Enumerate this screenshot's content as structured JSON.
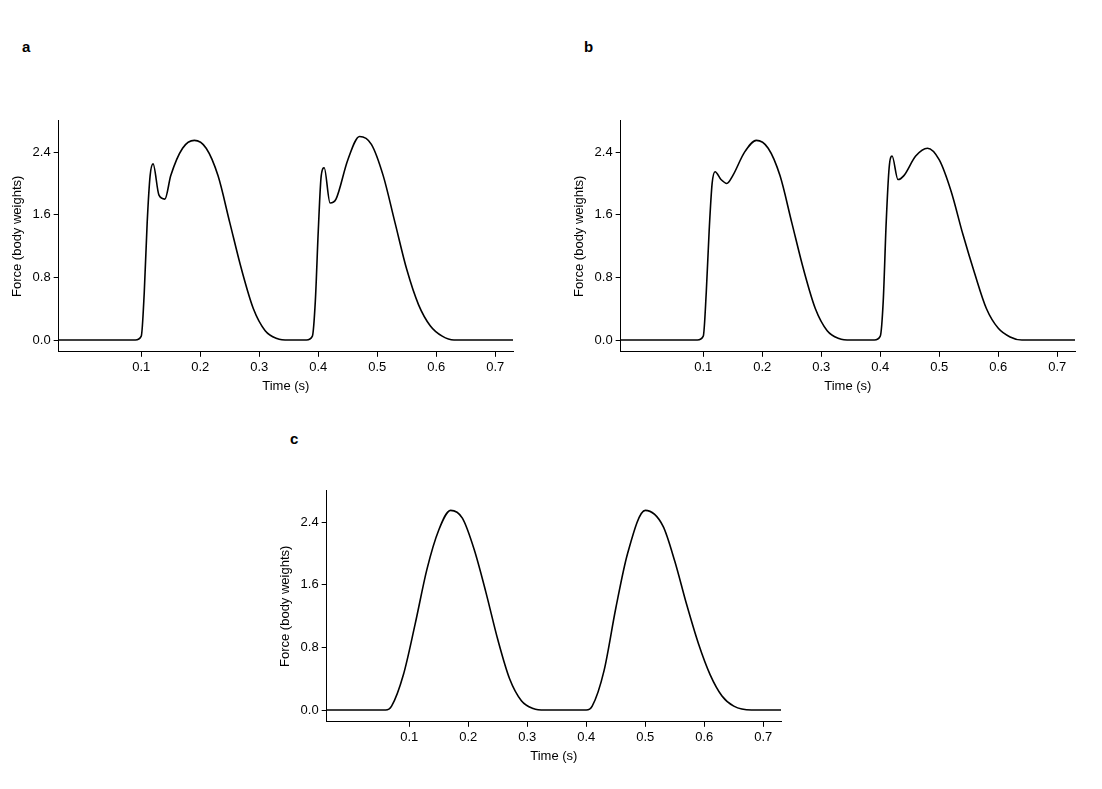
{
  "chart_data": [
    {
      "type": "line",
      "title": "a",
      "x_label": "Time (s)",
      "y_label": "Force (body weights)",
      "color": "#000000",
      "grid": false,
      "xlim": [
        -0.04,
        0.73
      ],
      "ylim": [
        -0.15,
        2.8
      ],
      "xticks": [
        0.1,
        0.2,
        0.3,
        0.4,
        0.5,
        0.6,
        0.7
      ],
      "yticks": [
        {
          "value": 0,
          "label": "0.0"
        },
        0.8,
        1.6,
        2.4
      ],
      "x": [
        -0.04,
        0.09,
        0.1,
        0.105,
        0.11,
        0.115,
        0.12,
        0.13,
        0.14,
        0.15,
        0.17,
        0.19,
        0.21,
        0.23,
        0.25,
        0.27,
        0.29,
        0.31,
        0.33,
        0.35,
        0.38,
        0.39,
        0.395,
        0.4,
        0.405,
        0.41,
        0.42,
        0.43,
        0.45,
        0.47,
        0.49,
        0.51,
        0.53,
        0.55,
        0.57,
        0.59,
        0.61,
        0.63,
        0.73
      ],
      "values": [
        0,
        0,
        0.05,
        0.6,
        1.5,
        2.1,
        2.25,
        1.85,
        1.8,
        2.1,
        2.45,
        2.55,
        2.45,
        2.1,
        1.5,
        0.9,
        0.4,
        0.12,
        0.02,
        0,
        0,
        0.05,
        0.5,
        1.4,
        2.1,
        2.2,
        1.75,
        1.8,
        2.3,
        2.6,
        2.5,
        2.1,
        1.5,
        0.9,
        0.45,
        0.18,
        0.05,
        0,
        0
      ]
    },
    {
      "type": "line",
      "title": "b",
      "x_label": "Time (s)",
      "y_label": "Force (body weights)",
      "color": "#000000",
      "grid": false,
      "xlim": [
        -0.04,
        0.73
      ],
      "ylim": [
        -0.15,
        2.8
      ],
      "xticks": [
        0.1,
        0.2,
        0.3,
        0.4,
        0.5,
        0.6,
        0.7
      ],
      "yticks": [
        {
          "value": 0,
          "label": "0.0"
        },
        0.8,
        1.6,
        2.4
      ],
      "x": [
        -0.04,
        0.09,
        0.1,
        0.105,
        0.11,
        0.115,
        0.12,
        0.13,
        0.14,
        0.15,
        0.17,
        0.19,
        0.21,
        0.23,
        0.25,
        0.27,
        0.29,
        0.31,
        0.33,
        0.35,
        0.39,
        0.4,
        0.405,
        0.41,
        0.415,
        0.42,
        0.43,
        0.44,
        0.46,
        0.48,
        0.5,
        0.52,
        0.54,
        0.56,
        0.58,
        0.6,
        0.62,
        0.64,
        0.73
      ],
      "values": [
        0,
        0,
        0.05,
        0.6,
        1.4,
        2.0,
        2.15,
        2.05,
        2.0,
        2.1,
        2.4,
        2.55,
        2.45,
        2.1,
        1.5,
        0.9,
        0.4,
        0.12,
        0.02,
        0,
        0,
        0.05,
        0.5,
        1.5,
        2.2,
        2.35,
        2.05,
        2.1,
        2.35,
        2.45,
        2.3,
        1.9,
        1.35,
        0.85,
        0.4,
        0.15,
        0.04,
        0,
        0
      ]
    },
    {
      "type": "line",
      "title": "c",
      "x_label": "Time (s)",
      "y_label": "Force (body weights)",
      "color": "#000000",
      "grid": false,
      "xlim": [
        -0.04,
        0.73
      ],
      "ylim": [
        -0.15,
        2.8
      ],
      "xticks": [
        0.1,
        0.2,
        0.3,
        0.4,
        0.5,
        0.6,
        0.7
      ],
      "yticks": [
        {
          "value": 0,
          "label": "0.0"
        },
        0.8,
        1.6,
        2.4
      ],
      "x": [
        -0.04,
        0.06,
        0.07,
        0.09,
        0.11,
        0.13,
        0.15,
        0.17,
        0.19,
        0.21,
        0.23,
        0.25,
        0.27,
        0.29,
        0.31,
        0.33,
        0.4,
        0.41,
        0.43,
        0.45,
        0.47,
        0.5,
        0.53,
        0.55,
        0.57,
        0.59,
        0.61,
        0.63,
        0.65,
        0.68,
        0.73
      ],
      "values": [
        0,
        0,
        0.05,
        0.45,
        1.1,
        1.8,
        2.3,
        2.55,
        2.45,
        2.05,
        1.5,
        0.9,
        0.4,
        0.12,
        0.02,
        0,
        0,
        0.05,
        0.5,
        1.3,
        2.0,
        2.55,
        2.35,
        1.9,
        1.35,
        0.85,
        0.45,
        0.18,
        0.05,
        0,
        0
      ]
    }
  ]
}
